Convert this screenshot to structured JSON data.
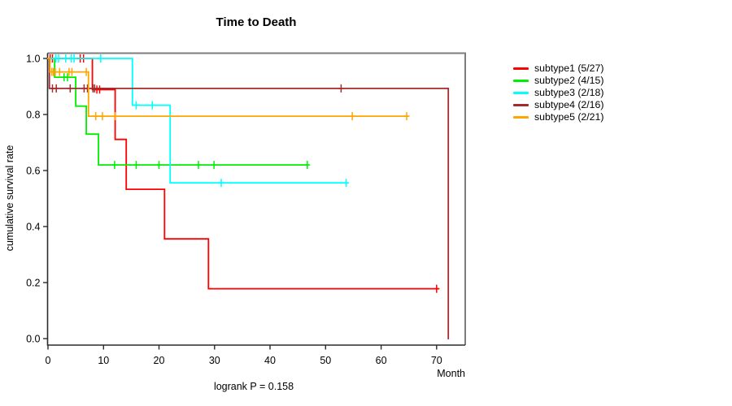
{
  "title": "Time to Death",
  "footer": "logrank P = 0.158",
  "axes": {
    "x": {
      "label": "Month",
      "range": [
        0,
        75
      ],
      "ticks": [
        {
          "value": 0,
          "label": "0"
        },
        {
          "value": 10,
          "label": "10"
        },
        {
          "value": 20,
          "label": "20"
        },
        {
          "value": 30,
          "label": "30"
        },
        {
          "value": 40,
          "label": "40"
        },
        {
          "value": 50,
          "label": "50"
        },
        {
          "value": 60,
          "label": "60"
        },
        {
          "value": 70,
          "label": "70"
        }
      ]
    },
    "y": {
      "label": "cumulative survival rate",
      "range": [
        0.0,
        1.0
      ],
      "ticks": [
        {
          "value": 0.0,
          "label": "0.0"
        },
        {
          "value": 0.2,
          "label": "0.2"
        },
        {
          "value": 0.4,
          "label": "0.4"
        },
        {
          "value": 0.6,
          "label": "0.6"
        },
        {
          "value": 0.8,
          "label": "0.8"
        },
        {
          "value": 1.0,
          "label": "1.0"
        }
      ]
    }
  },
  "chart_data": {
    "type": "line",
    "subtype": "kaplan-meier-step",
    "title": "Time to Death",
    "xlabel": "Month",
    "ylabel": "cumulative survival rate",
    "xlim": [
      0,
      75
    ],
    "ylim": [
      0.0,
      1.0
    ],
    "grid": false,
    "legend_position": "right",
    "annotation": "logrank P = 0.158",
    "series": [
      {
        "name": "subtype1",
        "label": "subtype1 (5/27)",
        "events": "5/27",
        "color": "#FF0000",
        "steps": [
          [
            0,
            1.0
          ],
          [
            8.0,
            0.889
          ],
          [
            12.1,
            0.711
          ],
          [
            14.1,
            0.533
          ],
          [
            21.0,
            0.356
          ],
          [
            28.9,
            0.178
          ]
        ],
        "end_month": 70.3,
        "censors": [
          [
            0.4,
            1.0
          ],
          [
            0.8,
            1.0
          ],
          [
            5.8,
            1.0
          ],
          [
            6.4,
            1.0
          ],
          [
            8.8,
            0.889
          ],
          [
            9.3,
            0.889
          ],
          [
            70.0,
            0.178
          ]
        ]
      },
      {
        "name": "subtype2",
        "label": "subtype2 (4/15)",
        "events": "4/15",
        "color": "#00EE00",
        "steps": [
          [
            0,
            1.0
          ],
          [
            1.2,
            0.933
          ],
          [
            5.0,
            0.83
          ],
          [
            6.9,
            0.73
          ],
          [
            9.1,
            0.62
          ]
        ],
        "end_month": 46.9,
        "censors": [
          [
            2.9,
            0.933
          ],
          [
            3.5,
            0.933
          ],
          [
            12.0,
            0.62
          ],
          [
            15.9,
            0.62
          ],
          [
            20.0,
            0.62
          ],
          [
            27.1,
            0.62
          ],
          [
            29.9,
            0.62
          ],
          [
            46.7,
            0.62
          ]
        ]
      },
      {
        "name": "subtype3",
        "label": "subtype3 (2/18)",
        "events": "2/18",
        "color": "#00FFFF",
        "steps": [
          [
            0,
            1.0
          ],
          [
            15.2,
            0.833
          ],
          [
            22.0,
            0.556
          ]
        ],
        "end_month": 53.9,
        "censors": [
          [
            1.4,
            1.0
          ],
          [
            1.9,
            1.0
          ],
          [
            3.2,
            1.0
          ],
          [
            4.2,
            1.0
          ],
          [
            4.7,
            1.0
          ],
          [
            9.5,
            1.0
          ],
          [
            15.9,
            0.833
          ],
          [
            18.8,
            0.833
          ],
          [
            31.2,
            0.556
          ],
          [
            53.7,
            0.556
          ]
        ]
      },
      {
        "name": "subtype4",
        "label": "subtype4 (2/16)",
        "events": "2/16",
        "color": "#A52A2A",
        "steps": [
          [
            0,
            1.0
          ],
          [
            0.25,
            0.893
          ],
          [
            72.1,
            0.0
          ]
        ],
        "end_month": 72.1,
        "censors": [
          [
            0.8,
            0.893
          ],
          [
            1.5,
            0.893
          ],
          [
            4.0,
            0.893
          ],
          [
            6.5,
            0.893
          ],
          [
            7.1,
            0.893
          ],
          [
            8.1,
            0.893
          ],
          [
            8.4,
            0.893
          ],
          [
            52.8,
            0.893
          ]
        ]
      },
      {
        "name": "subtype5",
        "label": "subtype5 (2/21)",
        "events": "2/21",
        "color": "#FFA500",
        "steps": [
          [
            0,
            1.0
          ],
          [
            0.35,
            0.952
          ],
          [
            7.3,
            0.794
          ]
        ],
        "end_month": 64.8,
        "censors": [
          [
            0.7,
            0.952
          ],
          [
            1.0,
            0.952
          ],
          [
            1.3,
            0.952
          ],
          [
            2.1,
            0.952
          ],
          [
            3.8,
            0.952
          ],
          [
            4.3,
            0.952
          ],
          [
            6.9,
            0.952
          ],
          [
            8.6,
            0.794
          ],
          [
            9.8,
            0.794
          ],
          [
            12.1,
            0.794
          ],
          [
            54.8,
            0.794
          ],
          [
            64.6,
            0.794
          ]
        ]
      }
    ]
  },
  "style_colors": {
    "frame_gray": "#7d7d7d",
    "axis_black": "#2b2b2b"
  }
}
